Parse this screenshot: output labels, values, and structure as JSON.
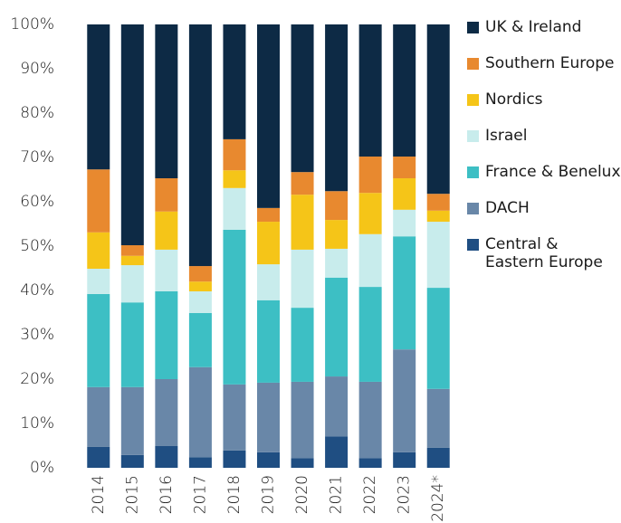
{
  "chart_data": {
    "type": "stacked_bar",
    "categories": [
      "2014",
      "2015",
      "2016",
      "2017",
      "2018",
      "2019",
      "2020",
      "2021",
      "2022",
      "2023",
      "2024*"
    ],
    "series": [
      {
        "name": "Central & Eastern Europe",
        "color": "#1f4e82",
        "values": [
          4.7,
          2.9,
          4.9,
          2.4,
          3.9,
          3.5,
          2.2,
          7.1,
          2.2,
          3.5,
          4.5
        ]
      },
      {
        "name": "DACH",
        "color": "#6987a8",
        "values": [
          13.5,
          15.3,
          15.1,
          20.3,
          14.9,
          15.7,
          17.2,
          13.5,
          17.2,
          23.2,
          13.3
        ]
      },
      {
        "name": "France & Benelux",
        "color": "#3dbfc4",
        "values": [
          21.0,
          19.1,
          19.8,
          12.2,
          34.9,
          18.6,
          16.7,
          22.3,
          21.4,
          25.5,
          22.8
        ]
      },
      {
        "name": "Israel",
        "color": "#c8ecec",
        "values": [
          5.7,
          8.4,
          9.4,
          4.9,
          9.4,
          8.1,
          13.1,
          6.5,
          11.9,
          6.0,
          14.9
        ]
      },
      {
        "name": "Nordics",
        "color": "#f5c518",
        "values": [
          8.2,
          2.1,
          8.6,
          2.2,
          4.0,
          9.6,
          12.4,
          6.5,
          9.3,
          7.1,
          2.5
        ]
      },
      {
        "name": "Southern Europe",
        "color": "#e8892f",
        "values": [
          14.2,
          2.4,
          7.5,
          3.5,
          7.0,
          3.1,
          5.1,
          6.5,
          8.2,
          4.9,
          3.8
        ]
      },
      {
        "name": "UK & Ireland",
        "color": "#0d2a45",
        "values": [
          32.7,
          49.8,
          34.7,
          54.5,
          25.9,
          41.4,
          33.3,
          37.6,
          29.8,
          29.8,
          38.2
        ]
      }
    ],
    "ylim": [
      0,
      100
    ],
    "yticks": [
      {
        "value": 0,
        "label": "0%"
      },
      {
        "value": 10,
        "label": "10%"
      },
      {
        "value": 20,
        "label": "20%"
      },
      {
        "value": 30,
        "label": "30%"
      },
      {
        "value": 40,
        "label": "40%"
      },
      {
        "value": 50,
        "label": "50%"
      },
      {
        "value": 60,
        "label": "60%"
      },
      {
        "value": 70,
        "label": "70%"
      },
      {
        "value": 80,
        "label": "80%"
      },
      {
        "value": 90,
        "label": "90%"
      },
      {
        "value": 100,
        "label": "100%"
      }
    ],
    "grid": false,
    "legend": "right"
  }
}
